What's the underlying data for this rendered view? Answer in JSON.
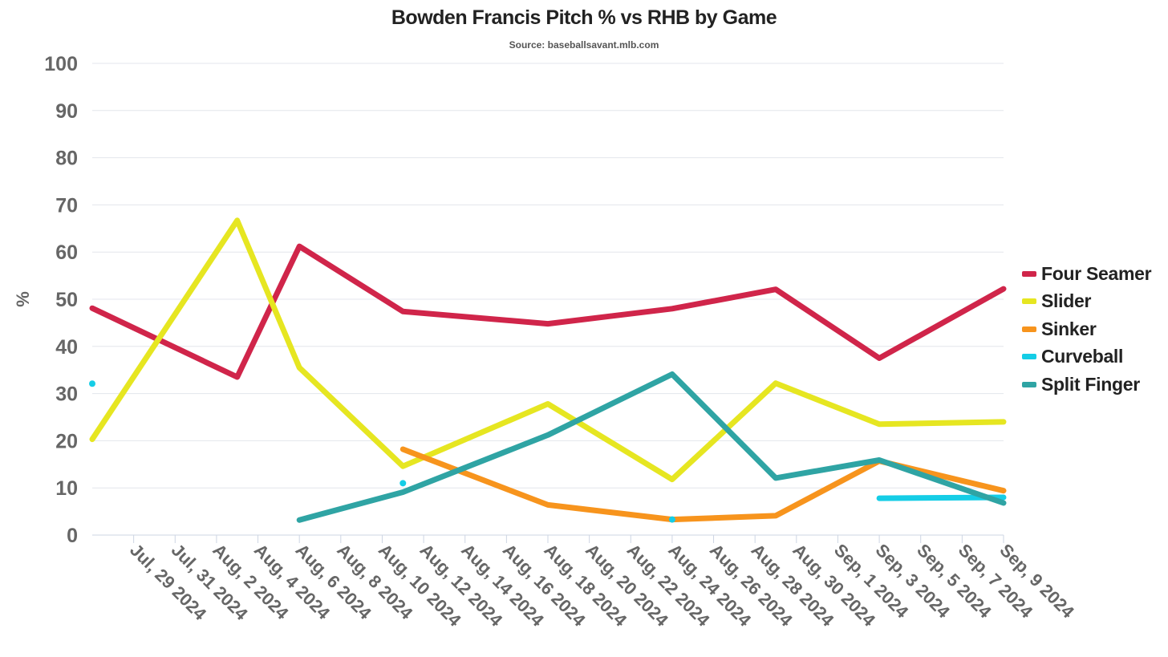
{
  "chart_data": {
    "type": "line",
    "title": "Bowden Francis Pitch % vs RHB by Game",
    "subtitle": "Source: baseballsavant.mlb.com",
    "xlabel": "",
    "ylabel": "%",
    "ylim": [
      0,
      100
    ],
    "yticks": [
      "0",
      "10",
      "20",
      "30",
      "40",
      "50",
      "60",
      "70",
      "80",
      "90",
      "100"
    ],
    "xlim": [
      "2024-07-27",
      "2024-09-09"
    ],
    "xtick_labels": [
      "Jul, 29 2024",
      "Jul, 31 2024",
      "Aug, 2 2024",
      "Aug, 4 2024",
      "Aug, 6 2024",
      "Aug, 8 2024",
      "Aug, 10 2024",
      "Aug, 12 2024",
      "Aug, 14 2024",
      "Aug, 16 2024",
      "Aug, 18 2024",
      "Aug, 20 2024",
      "Aug, 22 2024",
      "Aug, 24 2024",
      "Aug, 26 2024",
      "Aug, 28 2024",
      "Aug, 30 2024",
      "Sep, 1 2024",
      "Sep, 3 2024",
      "Sep, 5 2024",
      "Sep, 7 2024",
      "Sep, 9 2024"
    ],
    "xtick_dates": [
      "2024-07-29",
      "2024-07-31",
      "2024-08-02",
      "2024-08-04",
      "2024-08-06",
      "2024-08-08",
      "2024-08-10",
      "2024-08-12",
      "2024-08-14",
      "2024-08-16",
      "2024-08-18",
      "2024-08-20",
      "2024-08-22",
      "2024-08-24",
      "2024-08-26",
      "2024-08-28",
      "2024-08-30",
      "2024-09-01",
      "2024-09-03",
      "2024-09-05",
      "2024-09-07",
      "2024-09-09"
    ],
    "grid": true,
    "legend_position": "right",
    "series": [
      {
        "name": "Four Seamer",
        "color": "#d0254a",
        "points": [
          {
            "x": "2024-07-27",
            "y": 48.1
          },
          {
            "x": "2024-08-03",
            "y": 33.5
          },
          {
            "x": "2024-08-06",
            "y": 61.2
          },
          {
            "x": "2024-08-11",
            "y": 47.4
          },
          {
            "x": "2024-08-18",
            "y": 44.8
          },
          {
            "x": "2024-08-24",
            "y": 48.0
          },
          {
            "x": "2024-08-29",
            "y": 52.1
          },
          {
            "x": "2024-09-03",
            "y": 37.5
          },
          {
            "x": "2024-09-09",
            "y": 52.2
          }
        ]
      },
      {
        "name": "Slider",
        "color": "#e6e621",
        "points": [
          {
            "x": "2024-07-27",
            "y": 20.3
          },
          {
            "x": "2024-08-03",
            "y": 66.7
          },
          {
            "x": "2024-08-06",
            "y": 35.5
          },
          {
            "x": "2024-08-11",
            "y": 14.6
          },
          {
            "x": "2024-08-18",
            "y": 27.8
          },
          {
            "x": "2024-08-24",
            "y": 11.8
          },
          {
            "x": "2024-08-29",
            "y": 32.2
          },
          {
            "x": "2024-09-03",
            "y": 23.5
          },
          {
            "x": "2024-09-09",
            "y": 24.0
          }
        ]
      },
      {
        "name": "Sinker",
        "color": "#f7941d",
        "points": [
          {
            "x": "2024-08-11",
            "y": 18.2
          },
          {
            "x": "2024-08-18",
            "y": 6.4
          },
          {
            "x": "2024-08-24",
            "y": 3.3
          },
          {
            "x": "2024-08-29",
            "y": 4.1
          },
          {
            "x": "2024-09-03",
            "y": 15.7
          },
          {
            "x": "2024-09-09",
            "y": 9.4
          }
        ]
      },
      {
        "name": "Curveball",
        "color": "#15cde6",
        "points": [
          {
            "x": "2024-07-27",
            "y": 32.1
          },
          {
            "x": "2024-08-11",
            "y": 11.0
          },
          {
            "x": "2024-08-24",
            "y": 3.3
          },
          {
            "x": "2024-09-03",
            "y": 7.8
          },
          {
            "x": "2024-09-09",
            "y": 8.0
          }
        ]
      },
      {
        "name": "Split Finger",
        "color": "#2fa4a4",
        "points": [
          {
            "x": "2024-08-06",
            "y": 3.2
          },
          {
            "x": "2024-08-11",
            "y": 9.1
          },
          {
            "x": "2024-08-18",
            "y": 21.2
          },
          {
            "x": "2024-08-24",
            "y": 34.1
          },
          {
            "x": "2024-08-29",
            "y": 12.1
          },
          {
            "x": "2024-09-03",
            "y": 15.9
          },
          {
            "x": "2024-09-09",
            "y": 6.8
          }
        ]
      }
    ]
  }
}
